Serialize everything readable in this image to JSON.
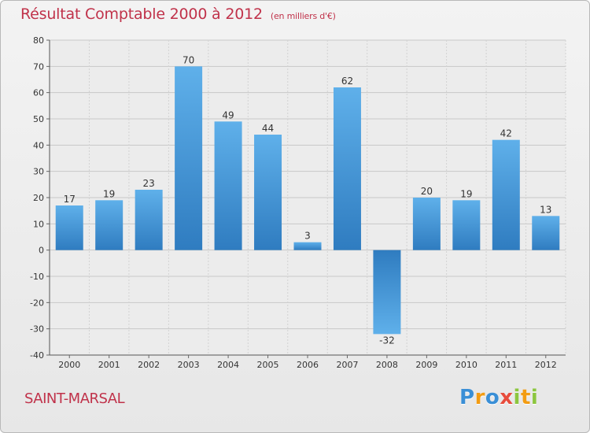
{
  "title": {
    "main": "Résultat Comptable 2000 à 2012",
    "sub": "(en milliers d'€)"
  },
  "footer": {
    "place_name": "SAINT-MARSAL",
    "brand": "Proxiti",
    "brand_letters": [
      "P",
      "r",
      "o",
      "x",
      "i",
      "t",
      "i"
    ],
    "brand_colors": [
      "#3a8fd6",
      "#f39c12",
      "#3a8fd6",
      "#e74c3c",
      "#8cc63f",
      "#f39c12",
      "#8cc63f"
    ]
  },
  "colors": {
    "bar": "#3d8fd4",
    "title": "#c0324a"
  },
  "chart_data": {
    "type": "bar",
    "categories": [
      "2000",
      "2001",
      "2002",
      "2003",
      "2004",
      "2005",
      "2006",
      "2007",
      "2008",
      "2009",
      "2010",
      "2011",
      "2012"
    ],
    "values": [
      17,
      19,
      23,
      70,
      49,
      44,
      3,
      62,
      -32,
      20,
      19,
      42,
      13
    ],
    "title": "Résultat Comptable 2000 à 2012",
    "ylim": [
      -40,
      80
    ],
    "yticks": [
      -40,
      -30,
      -20,
      -10,
      0,
      10,
      20,
      30,
      40,
      50,
      60,
      70,
      80
    ],
    "grid": true,
    "data_labels": true
  }
}
